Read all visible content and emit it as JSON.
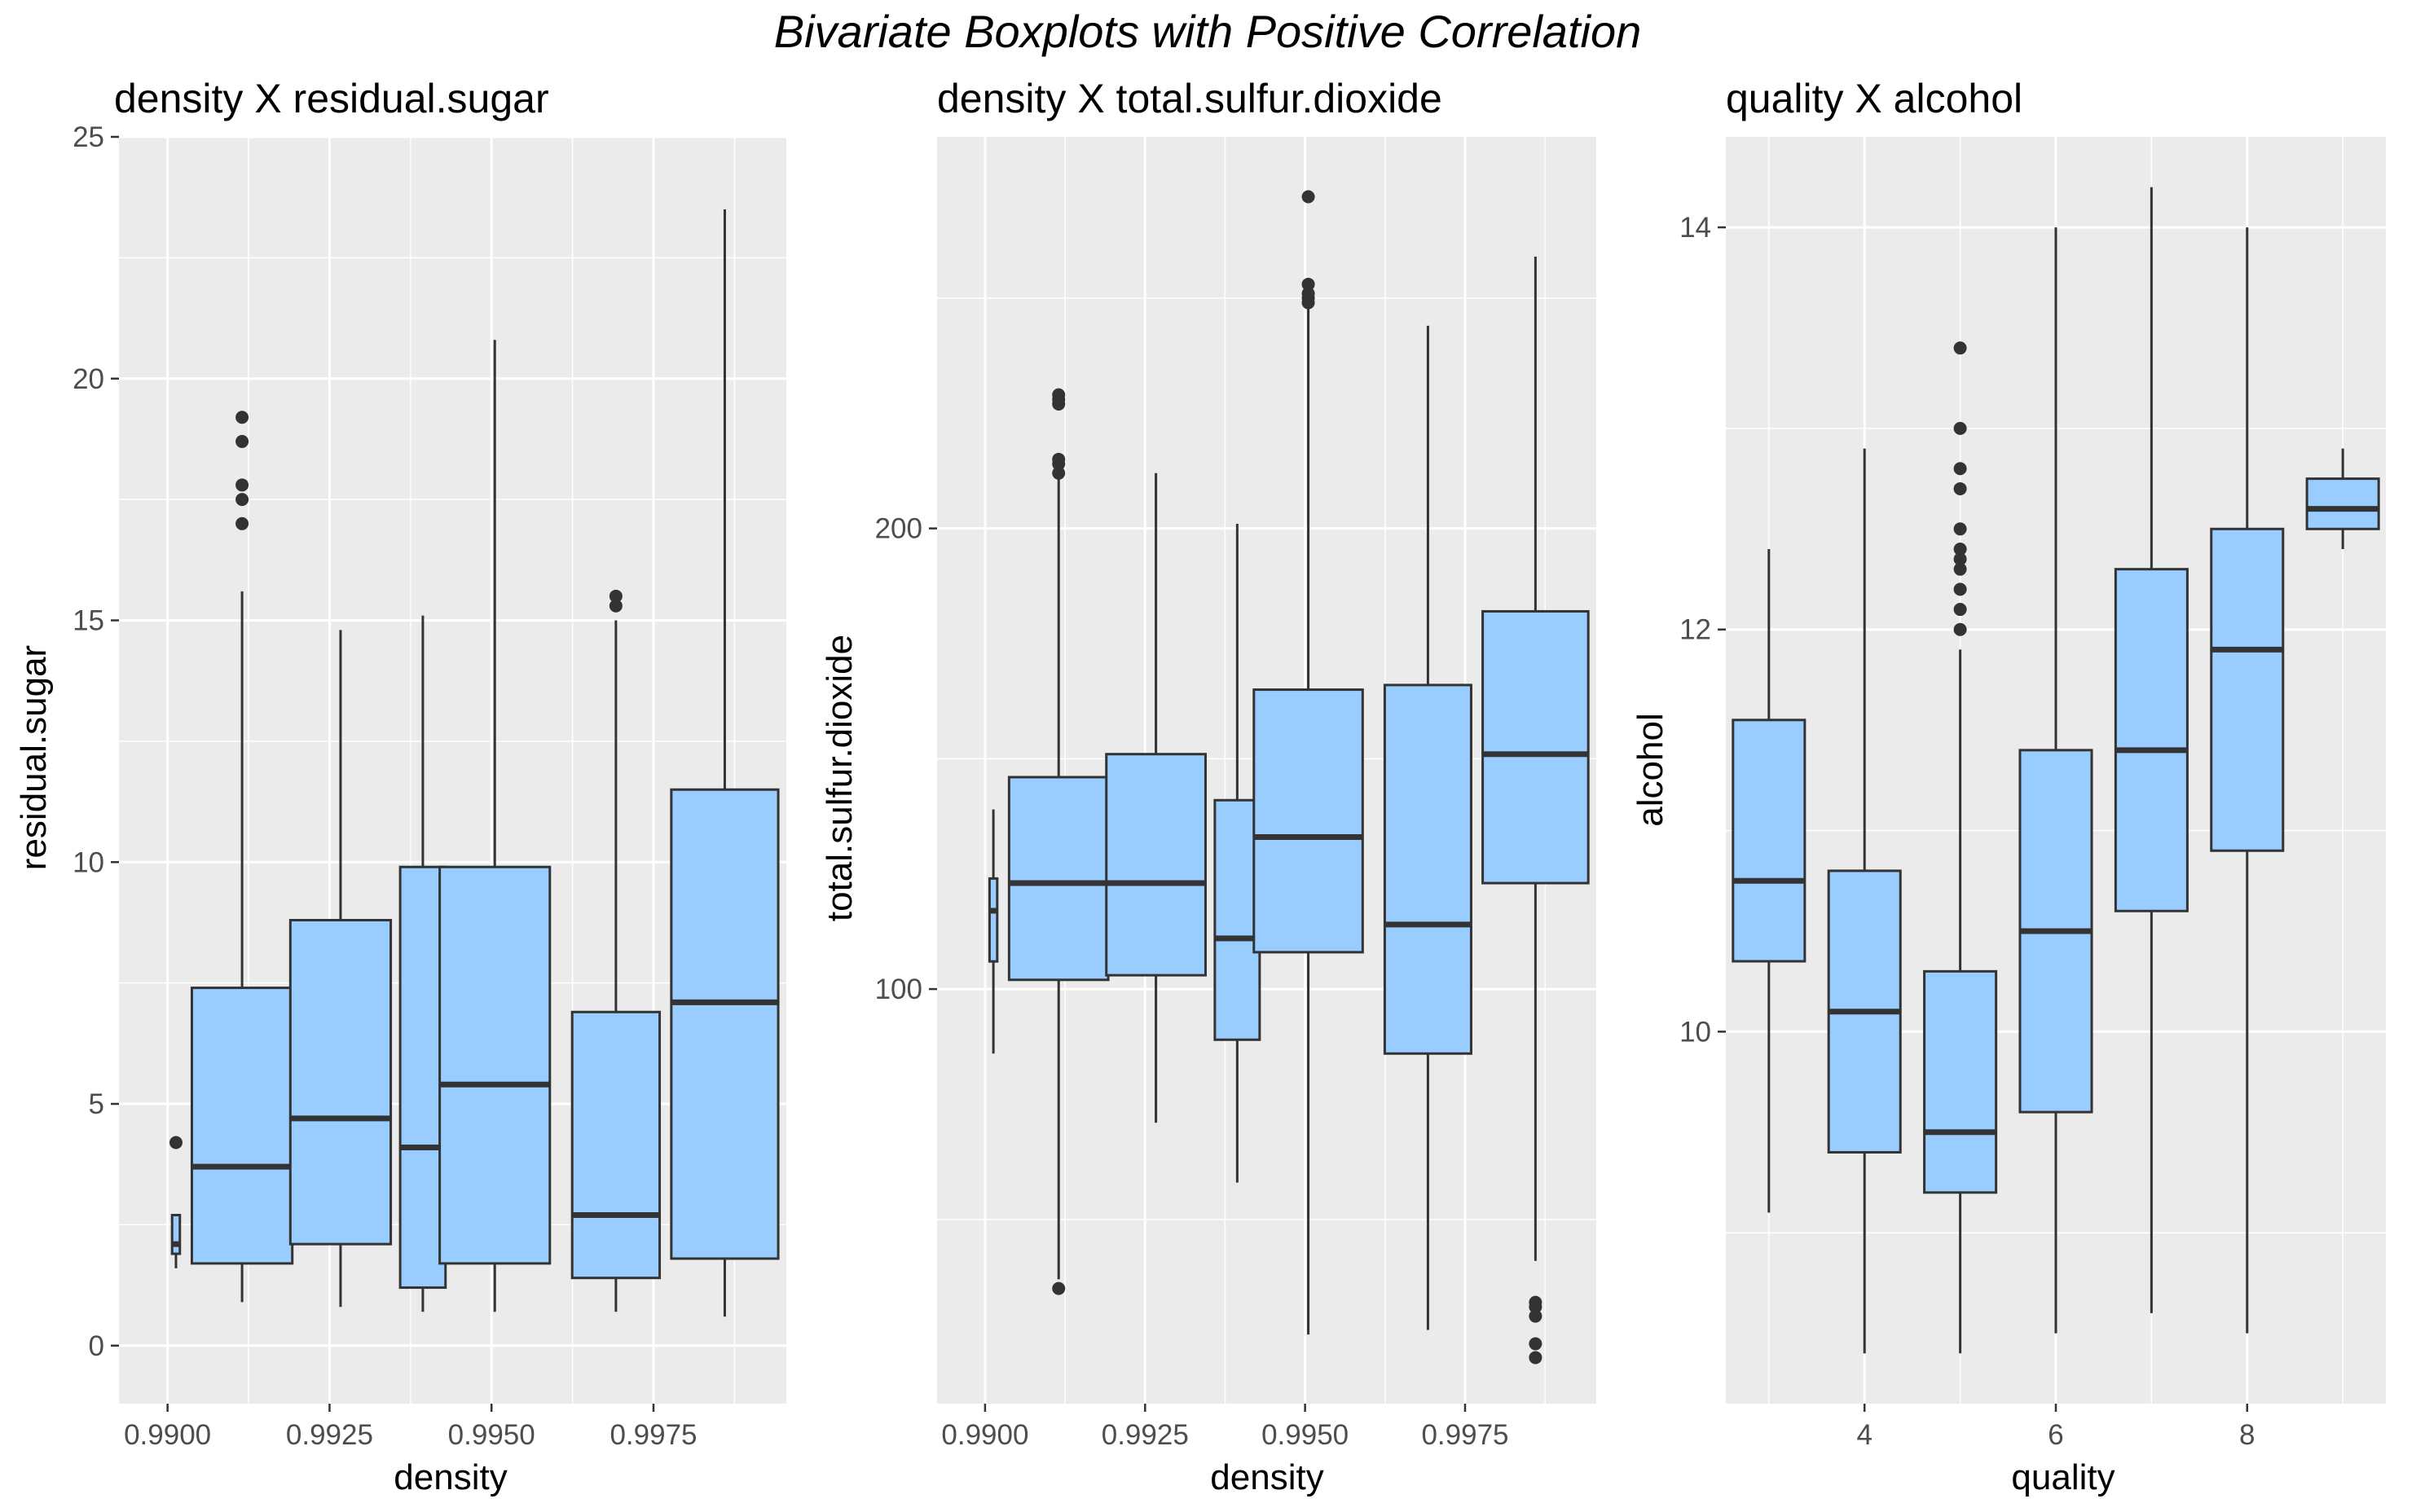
{
  "title": "Bivariate Boxplots with Positive Correlation",
  "colors": {
    "panel_bg": "#EBEBEB",
    "grid_major": "#FFFFFF",
    "box_fill": "#99CCFF",
    "box_stroke": "#333333",
    "tick_label": "#4D4D4D",
    "tick_mark": "#333333"
  },
  "chart_data": [
    {
      "type": "boxplot",
      "title": "density X residual.sugar",
      "xlabel": "density",
      "ylabel": "residual.sugar",
      "xlim": [
        0.98925,
        0.99955
      ],
      "ylim": [
        -1.2,
        25.0
      ],
      "x_ticks": [
        {
          "value": 0.99,
          "label": "0.9900"
        },
        {
          "value": 0.9925,
          "label": "0.9925"
        },
        {
          "value": 0.995,
          "label": "0.9950"
        },
        {
          "value": 0.9975,
          "label": "0.9975"
        }
      ],
      "y_ticks": [
        {
          "value": 0,
          "label": "0"
        },
        {
          "value": 5,
          "label": "5"
        },
        {
          "value": 10,
          "label": "10"
        },
        {
          "value": 15,
          "label": "15"
        },
        {
          "value": 20,
          "label": "20"
        },
        {
          "value": 25,
          "label": "25"
        }
      ],
      "grid": true,
      "boxes": [
        {
          "x": 0.99013,
          "width": 0.00012,
          "lower_whisker": 1.6,
          "q1": 1.9,
          "median": 2.1,
          "q3": 2.7,
          "upper_whisker": 2.7,
          "outliers": [
            4.2
          ]
        },
        {
          "x": 0.99115,
          "width": 0.00155,
          "lower_whisker": 0.9,
          "q1": 1.7,
          "median": 3.7,
          "q3": 7.4,
          "upper_whisker": 15.6,
          "outliers": [
            17.0,
            17.5,
            17.8,
            18.7,
            19.2
          ]
        },
        {
          "x": 0.99267,
          "width": 0.00155,
          "lower_whisker": 0.8,
          "q1": 2.1,
          "median": 4.7,
          "q3": 8.8,
          "upper_whisker": 14.8,
          "outliers": []
        },
        {
          "x": 0.99394,
          "width": 0.0007,
          "lower_whisker": 0.7,
          "q1": 1.2,
          "median": 4.1,
          "q3": 9.9,
          "upper_whisker": 15.1,
          "outliers": []
        },
        {
          "x": 0.99505,
          "width": 0.0017,
          "lower_whisker": 0.7,
          "q1": 1.7,
          "median": 5.4,
          "q3": 9.9,
          "upper_whisker": 20.8,
          "outliers": []
        },
        {
          "x": 0.99692,
          "width": 0.00135,
          "lower_whisker": 0.7,
          "q1": 1.4,
          "median": 2.7,
          "q3": 6.9,
          "upper_whisker": 15.0,
          "outliers": [
            15.3,
            15.5
          ]
        },
        {
          "x": 0.9986,
          "width": 0.00165,
          "lower_whisker": 0.6,
          "q1": 1.8,
          "median": 7.1,
          "q3": 11.5,
          "upper_whisker": 23.5,
          "outliers": []
        }
      ]
    },
    {
      "type": "boxplot",
      "title": "density X total.sulfur.dioxide",
      "xlabel": "density",
      "ylabel": "total.sulfur.dioxide",
      "xlim": [
        0.98925,
        0.99955
      ],
      "ylim": [
        10,
        285
      ],
      "x_ticks": [
        {
          "value": 0.99,
          "label": "0.9900"
        },
        {
          "value": 0.9925,
          "label": "0.9925"
        },
        {
          "value": 0.995,
          "label": "0.9950"
        },
        {
          "value": 0.9975,
          "label": "0.9975"
        }
      ],
      "y_ticks": [
        {
          "value": 100,
          "label": "100"
        },
        {
          "value": 200,
          "label": "200"
        }
      ],
      "minor_y": [
        50,
        150,
        250
      ],
      "grid": true,
      "boxes": [
        {
          "x": 0.99013,
          "width": 0.00012,
          "lower_whisker": 86,
          "q1": 106,
          "median": 117,
          "q3": 124,
          "upper_whisker": 139,
          "outliers": []
        },
        {
          "x": 0.99115,
          "width": 0.00155,
          "lower_whisker": 37,
          "q1": 102,
          "median": 123,
          "q3": 146,
          "upper_whisker": 211,
          "outliers": [
            35,
            212,
            214,
            215,
            227,
            228,
            229
          ]
        },
        {
          "x": 0.99267,
          "width": 0.00155,
          "lower_whisker": 71,
          "q1": 103,
          "median": 123,
          "q3": 151,
          "upper_whisker": 212,
          "outliers": []
        },
        {
          "x": 0.99394,
          "width": 0.0007,
          "lower_whisker": 58,
          "q1": 89,
          "median": 111,
          "q3": 141,
          "upper_whisker": 201,
          "outliers": []
        },
        {
          "x": 0.99505,
          "width": 0.0017,
          "lower_whisker": 25,
          "q1": 108,
          "median": 133,
          "q3": 165,
          "upper_whisker": 248,
          "outliers": [
            249,
            250,
            251,
            253,
            272
          ]
        },
        {
          "x": 0.99692,
          "width": 0.00135,
          "lower_whisker": 26,
          "q1": 86,
          "median": 114,
          "q3": 166,
          "upper_whisker": 244,
          "outliers": []
        },
        {
          "x": 0.9986,
          "width": 0.00165,
          "lower_whisker": 41,
          "q1": 123,
          "median": 151,
          "q3": 182,
          "upper_whisker": 259,
          "outliers": [
            20,
            23,
            29,
            31,
            32
          ]
        }
      ]
    },
    {
      "type": "boxplot",
      "title": "quality X alcohol",
      "xlabel": "quality",
      "ylabel": "alcohol",
      "xlim": [
        2.55,
        9.45
      ],
      "ylim": [
        8.15,
        14.45
      ],
      "x_ticks": [
        {
          "value": 4,
          "label": "4"
        },
        {
          "value": 6,
          "label": "6"
        },
        {
          "value": 8,
          "label": "8"
        }
      ],
      "y_ticks": [
        {
          "value": 10,
          "label": "10"
        },
        {
          "value": 12,
          "label": "12"
        },
        {
          "value": 14,
          "label": "14"
        }
      ],
      "minor_x": [
        3,
        5,
        7,
        9
      ],
      "minor_y": [
        9,
        11,
        13
      ],
      "grid": true,
      "boxes": [
        {
          "x": 3,
          "width": 0.75,
          "lower_whisker": 9.1,
          "q1": 10.35,
          "median": 10.75,
          "q3": 11.55,
          "upper_whisker": 12.4,
          "outliers": []
        },
        {
          "x": 4,
          "width": 0.75,
          "lower_whisker": 8.4,
          "q1": 9.4,
          "median": 10.1,
          "q3": 10.8,
          "upper_whisker": 12.9,
          "outliers": []
        },
        {
          "x": 5,
          "width": 0.75,
          "lower_whisker": 8.4,
          "q1": 9.2,
          "median": 9.5,
          "q3": 10.3,
          "upper_whisker": 11.9,
          "outliers": [
            12.0,
            12.1,
            12.2,
            12.3,
            12.35,
            12.4,
            12.5,
            12.7,
            12.8,
            13.0,
            13.4
          ]
        },
        {
          "x": 6,
          "width": 0.75,
          "lower_whisker": 8.5,
          "q1": 9.6,
          "median": 10.5,
          "q3": 11.4,
          "upper_whisker": 14.0,
          "outliers": []
        },
        {
          "x": 7,
          "width": 0.75,
          "lower_whisker": 8.6,
          "q1": 10.6,
          "median": 11.4,
          "q3": 12.3,
          "upper_whisker": 14.2,
          "outliers": []
        },
        {
          "x": 8,
          "width": 0.75,
          "lower_whisker": 8.5,
          "q1": 10.9,
          "median": 11.9,
          "q3": 12.5,
          "upper_whisker": 14.0,
          "outliers": []
        },
        {
          "x": 9,
          "width": 0.75,
          "lower_whisker": 12.4,
          "q1": 12.5,
          "median": 12.6,
          "q3": 12.75,
          "upper_whisker": 12.9,
          "outliers": []
        }
      ]
    }
  ]
}
